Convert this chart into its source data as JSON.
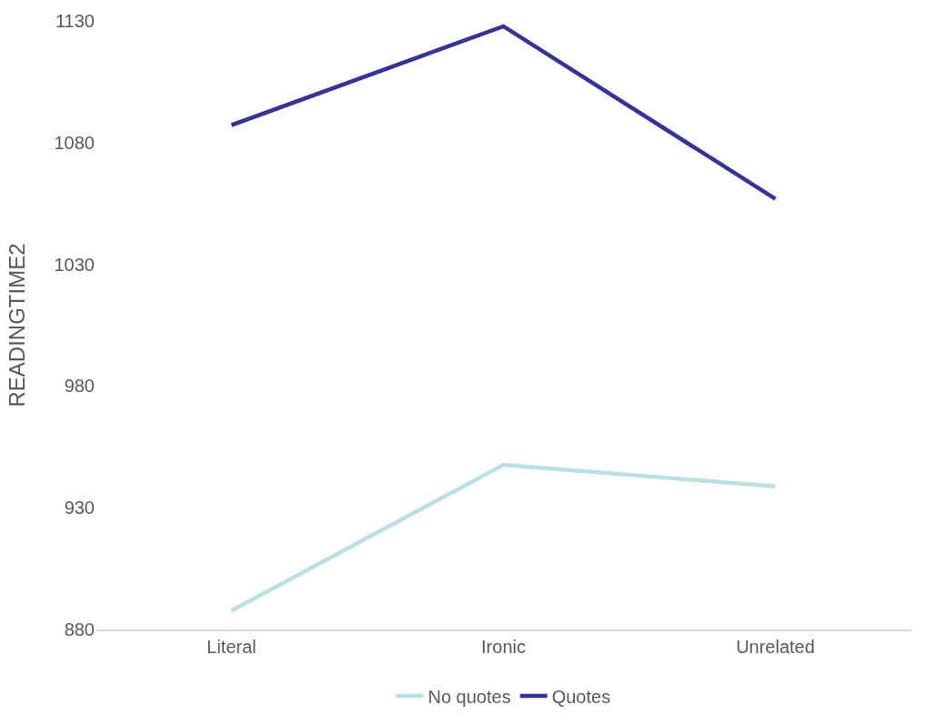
{
  "chart_data": {
    "type": "line",
    "ylabel": "READINGTIME2",
    "categories": [
      "Literal",
      "Ironic",
      "Unrelated"
    ],
    "series": [
      {
        "name": "No quotes",
        "color": "#b9e0e3",
        "values": [
          887.7,
          947.6,
          938.8
        ]
      },
      {
        "name": "Quotes",
        "color": "#333399",
        "values": [
          1087.2,
          1127.8,
          1056.9
        ]
      }
    ],
    "ylim": [
      880,
      1130
    ],
    "yticks": [
      880,
      930,
      980,
      1030,
      1080,
      1130
    ],
    "grid": false,
    "legend": "bottom",
    "marker": "none",
    "line_style": "solid"
  }
}
